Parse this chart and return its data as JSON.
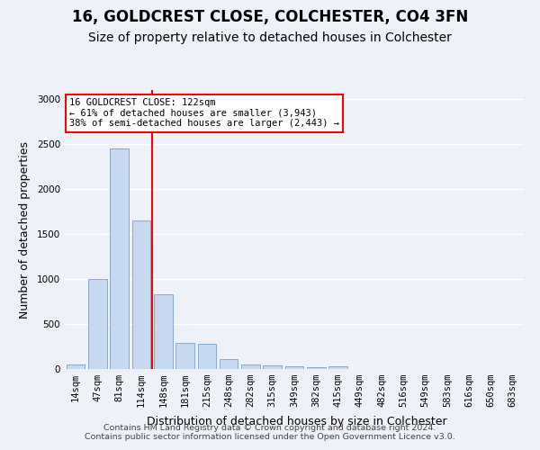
{
  "title": "16, GOLDCREST CLOSE, COLCHESTER, CO4 3FN",
  "subtitle": "Size of property relative to detached houses in Colchester",
  "xlabel": "Distribution of detached houses by size in Colchester",
  "ylabel": "Number of detached properties",
  "footer_line1": "Contains HM Land Registry data © Crown copyright and database right 2024.",
  "footer_line2": "Contains public sector information licensed under the Open Government Licence v3.0.",
  "categories": [
    "14sqm",
    "47sqm",
    "81sqm",
    "114sqm",
    "148sqm",
    "181sqm",
    "215sqm",
    "248sqm",
    "282sqm",
    "315sqm",
    "349sqm",
    "382sqm",
    "415sqm",
    "449sqm",
    "482sqm",
    "516sqm",
    "549sqm",
    "583sqm",
    "616sqm",
    "650sqm",
    "683sqm"
  ],
  "values": [
    55,
    1000,
    2450,
    1650,
    830,
    290,
    285,
    115,
    50,
    40,
    35,
    25,
    30,
    0,
    0,
    0,
    0,
    0,
    0,
    0,
    0
  ],
  "bar_color": "#c6d9f1",
  "bar_edge_color": "#7a9fc4",
  "vline_color": "red",
  "vline_x_index": 3,
  "annotation_text": "16 GOLDCREST CLOSE: 122sqm\n← 61% of detached houses are smaller (3,943)\n38% of semi-detached houses are larger (2,443) →",
  "annotation_box_color": "white",
  "annotation_box_edge": "red",
  "ylim": [
    0,
    3100
  ],
  "yticks": [
    0,
    500,
    1000,
    1500,
    2000,
    2500,
    3000
  ],
  "background_color": "#eef2f8",
  "grid_color": "white",
  "title_fontsize": 12,
  "subtitle_fontsize": 10,
  "axis_label_fontsize": 9,
  "tick_fontsize": 7.5,
  "footer_fontsize": 6.8
}
